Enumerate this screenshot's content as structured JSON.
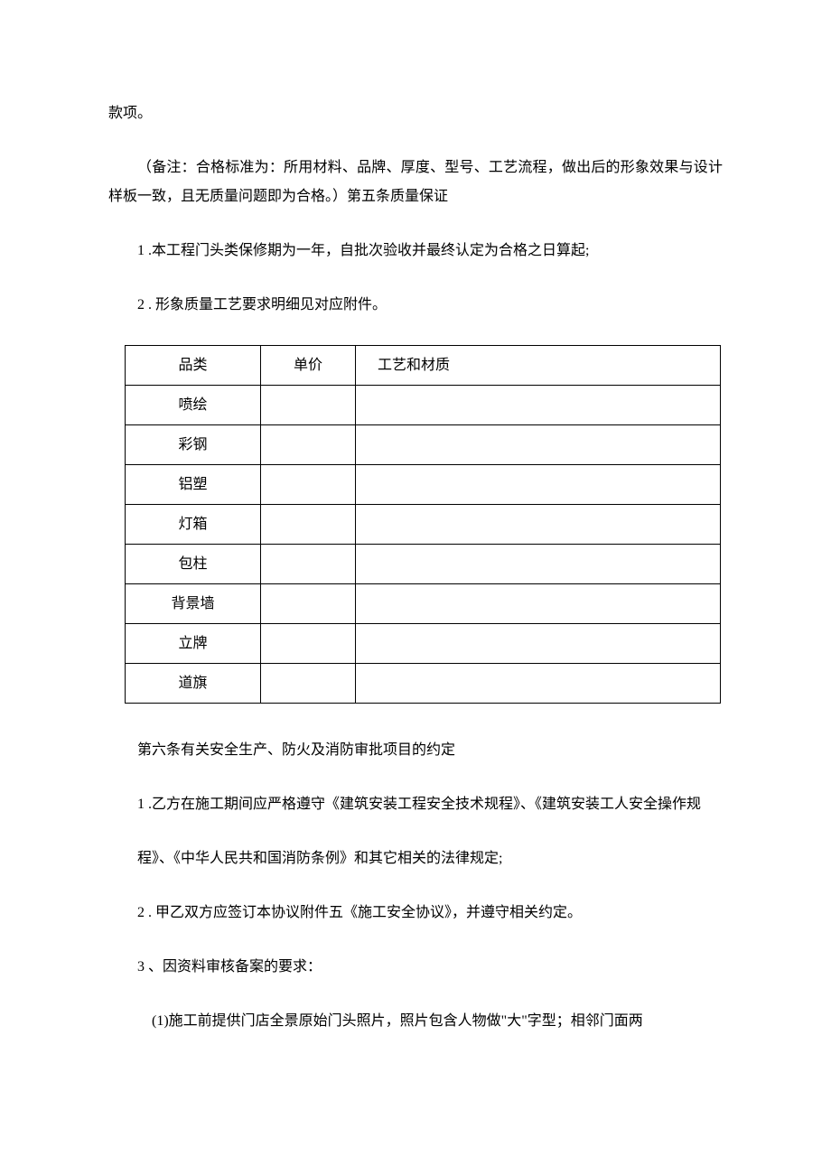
{
  "paragraphs": {
    "p1": "款项。",
    "p2": "（备注：合格标准为：所用材料、品牌、厚度、型号、工艺流程，做出后的形象效果与设计样板一致，且无质量问题即为合格。）第五条质量保证",
    "p3": "1 .本工程门头类保修期为一年，自批次验收并最终认定为合格之日算起;",
    "p4": "2 . 形象质量工艺要求明细见对应附件。",
    "p5": "第六条有关安全生产、防火及消防审批项目的约定",
    "p6": "1 .乙方在施工期间应严格遵守《建筑安装工程安全技术规程》、《建筑安装工人安全操作规",
    "p7": "程》、《中华人民共和国消防条例》和其它相关的法律规定;",
    "p8": "2 . 甲乙双方应签订本协议附件五《施工安全协议》，并遵守相关约定。",
    "p9": "3 、因资料审核备案的要求：",
    "p10": "(1)施工前提供门店全景原始门头照片，照片包含人物做\"大\"字型；相邻门面两"
  },
  "table": {
    "headers": {
      "c1": "品类",
      "c2": "单价",
      "c3": "工艺和材质"
    },
    "rows": [
      {
        "c1": "喷绘",
        "c2": "",
        "c3": ""
      },
      {
        "c1": "彩钢",
        "c2": "",
        "c3": ""
      },
      {
        "c1": "铝塑",
        "c2": "",
        "c3": ""
      },
      {
        "c1": "灯箱",
        "c2": "",
        "c3": ""
      },
      {
        "c1": "包柱",
        "c2": "",
        "c3": ""
      },
      {
        "c1": "背景墙",
        "c2": "",
        "c3": ""
      },
      {
        "c1": "立牌",
        "c2": "",
        "c3": ""
      },
      {
        "c1": "道旗",
        "c2": "",
        "c3": ""
      }
    ]
  }
}
